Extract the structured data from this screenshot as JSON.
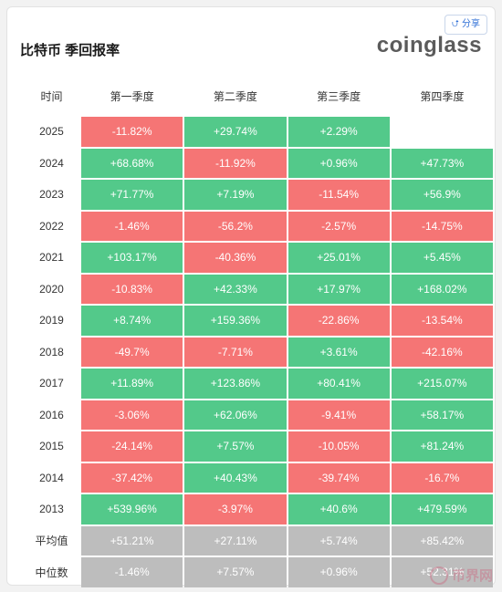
{
  "header": {
    "title": "比特币 季回报率",
    "brand": "coinglass",
    "share_label": "分享",
    "share_icon": "share-icon"
  },
  "table": {
    "columns": [
      "时间",
      "第一季度",
      "第二季度",
      "第三季度",
      "第四季度"
    ],
    "rows": [
      {
        "year": "2025",
        "q": [
          "-11.82%",
          "+29.74%",
          "+2.29%",
          ""
        ]
      },
      {
        "year": "2024",
        "q": [
          "+68.68%",
          "-11.92%",
          "+0.96%",
          "+47.73%"
        ]
      },
      {
        "year": "2023",
        "q": [
          "+71.77%",
          "+7.19%",
          "-11.54%",
          "+56.9%"
        ]
      },
      {
        "year": "2022",
        "q": [
          "-1.46%",
          "-56.2%",
          "-2.57%",
          "-14.75%"
        ]
      },
      {
        "year": "2021",
        "q": [
          "+103.17%",
          "-40.36%",
          "+25.01%",
          "+5.45%"
        ]
      },
      {
        "year": "2020",
        "q": [
          "-10.83%",
          "+42.33%",
          "+17.97%",
          "+168.02%"
        ]
      },
      {
        "year": "2019",
        "q": [
          "+8.74%",
          "+159.36%",
          "-22.86%",
          "-13.54%"
        ]
      },
      {
        "year": "2018",
        "q": [
          "-49.7%",
          "-7.71%",
          "+3.61%",
          "-42.16%"
        ]
      },
      {
        "year": "2017",
        "q": [
          "+11.89%",
          "+123.86%",
          "+80.41%",
          "+215.07%"
        ]
      },
      {
        "year": "2016",
        "q": [
          "-3.06%",
          "+62.06%",
          "-9.41%",
          "+58.17%"
        ]
      },
      {
        "year": "2015",
        "q": [
          "-24.14%",
          "+7.57%",
          "-10.05%",
          "+81.24%"
        ]
      },
      {
        "year": "2014",
        "q": [
          "-37.42%",
          "+40.43%",
          "-39.74%",
          "-16.7%"
        ]
      },
      {
        "year": "2013",
        "q": [
          "+539.96%",
          "-3.97%",
          "+40.6%",
          "+479.59%"
        ]
      }
    ],
    "stats": [
      {
        "label": "平均值",
        "q": [
          "+51.21%",
          "+27.11%",
          "+5.74%",
          "+85.42%"
        ]
      },
      {
        "label": "中位数",
        "q": [
          "-1.46%",
          "+7.57%",
          "+0.96%",
          "+52.31%"
        ]
      }
    ]
  },
  "colors": {
    "positive": "#53c98a",
    "negative": "#f57575",
    "stat": "#bdbdbd"
  },
  "watermark": {
    "text": "币界网"
  }
}
